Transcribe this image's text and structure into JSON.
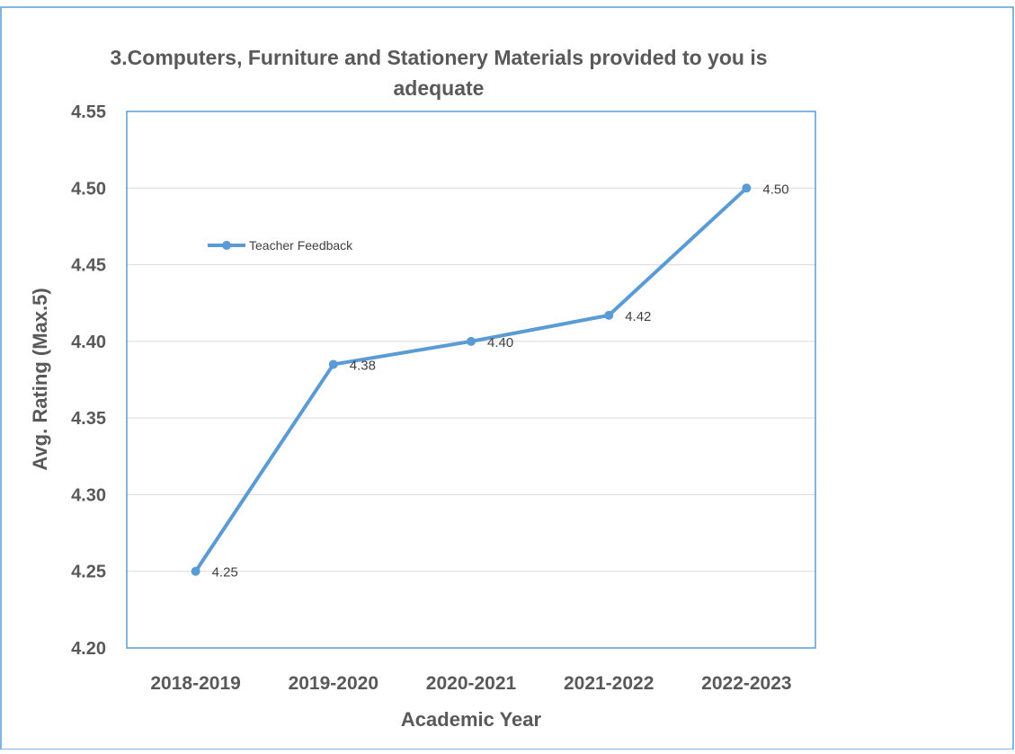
{
  "chart_data": {
    "type": "line",
    "title_lines": [
      "3.Computers, Furniture and Stationery Materials provided to you is",
      "adequate"
    ],
    "xlabel": "Academic Year",
    "ylabel": "Avg. Rating (Max.5)",
    "categories": [
      "2018-2019",
      "2019-2020",
      "2020-2021",
      "2021-2022",
      "2022-2023"
    ],
    "yticks": [
      "4.20",
      "4.25",
      "4.30",
      "4.35",
      "4.40",
      "4.45",
      "4.50",
      "4.55"
    ],
    "ylim": [
      4.2,
      4.55
    ],
    "grid": true,
    "legend_position": "upper-left inside plot",
    "series": [
      {
        "name": "Teacher Feedback",
        "values": [
          4.25,
          4.385,
          4.4,
          4.417,
          4.5
        ],
        "labels": [
          "4.25",
          "4.38",
          "4.40",
          "4.42",
          "4.50"
        ],
        "color": "#5b9bd5"
      }
    ]
  },
  "colors": {
    "frame_border": "#5b9bd5",
    "plot_border": "#5b9bd5",
    "gridline": "#d9d9d9",
    "text": "#595959"
  }
}
